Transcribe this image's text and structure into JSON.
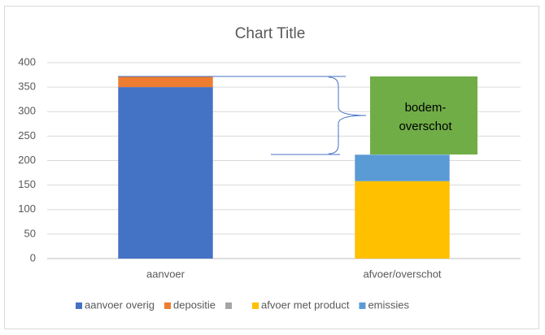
{
  "chart_data": {
    "type": "stacked_bar",
    "title": "Chart Title",
    "categories": [
      "aanvoer",
      "afvoer/overschot"
    ],
    "series": [
      {
        "name": "aanvoer overig",
        "color": "#4472c4",
        "values": [
          350,
          0
        ]
      },
      {
        "name": "depositie",
        "color": "#ed7d31",
        "values": [
          22,
          0
        ]
      },
      {
        "name": null,
        "color": "#a5a5a5",
        "values": [
          0,
          0
        ]
      },
      {
        "name": "afvoer met product",
        "color": "#ffc000",
        "values": [
          0,
          158
        ]
      },
      {
        "name": "emissies",
        "color": "#5b9bd5",
        "values": [
          0,
          54
        ]
      }
    ],
    "ylim": [
      0,
      400
    ],
    "yticks": [
      0,
      50,
      100,
      150,
      200,
      250,
      300,
      350,
      400
    ],
    "grid": true,
    "legend": "bottom",
    "annotation": {
      "lines": [
        "bodem-",
        "overschot"
      ],
      "color": "#70ad47"
    }
  }
}
